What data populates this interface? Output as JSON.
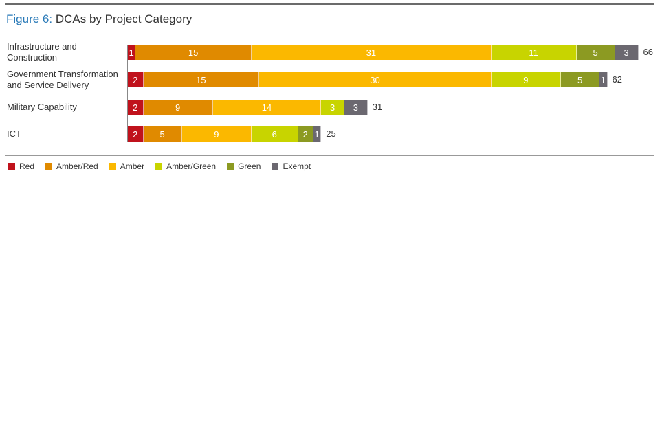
{
  "chart_data": {
    "type": "bar",
    "orientation": "horizontal-stacked",
    "title_prefix": "Figure 6:",
    "title": "DCAs by Project Category",
    "categories": [
      "Infrastructure and Construction",
      "Government Transformation and Service Delivery",
      "Military Capability",
      "ICT"
    ],
    "category_lines": [
      [
        "Infrastructure and",
        "Construction"
      ],
      [
        "Government Transformation",
        "and Service Delivery"
      ],
      [
        "Military Capability"
      ],
      [
        "ICT"
      ]
    ],
    "series": [
      {
        "name": "Red",
        "color": "#c0121c",
        "values": [
          1,
          2,
          2,
          2
        ]
      },
      {
        "name": "Amber/Red",
        "color": "#e08a00",
        "values": [
          15,
          15,
          9,
          5
        ]
      },
      {
        "name": "Amber",
        "color": "#fbb800",
        "values": [
          31,
          30,
          14,
          9
        ]
      },
      {
        "name": "Amber/Green",
        "color": "#c8d400",
        "values": [
          11,
          9,
          3,
          6
        ]
      },
      {
        "name": "Green",
        "color": "#8c9a22",
        "values": [
          5,
          5,
          0,
          2
        ]
      },
      {
        "name": "Exempt",
        "color": "#6b6870",
        "values": [
          3,
          1,
          3,
          1
        ]
      }
    ],
    "totals": [
      66,
      62,
      31,
      25
    ],
    "legend": "bottom-left"
  }
}
